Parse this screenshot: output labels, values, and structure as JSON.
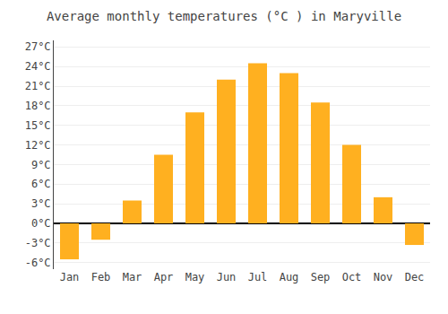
{
  "chart_data": {
    "type": "bar",
    "title": "Average monthly temperatures (°C ) in Maryville",
    "categories": [
      "Jan",
      "Feb",
      "Mar",
      "Apr",
      "May",
      "Jun",
      "Jul",
      "Aug",
      "Sep",
      "Oct",
      "Nov",
      "Dec"
    ],
    "values": [
      -5.5,
      -2.5,
      3.5,
      10.5,
      17.0,
      22.0,
      24.5,
      23.0,
      18.5,
      12.0,
      4.0,
      -3.3
    ],
    "color": "#FFB020",
    "ylim": [
      -7,
      28
    ],
    "yticks": [
      {
        "value": -6,
        "label": "-6°C"
      },
      {
        "value": -3,
        "label": "-3°C"
      },
      {
        "value": 0,
        "label": "0°C"
      },
      {
        "value": 3,
        "label": "3°C"
      },
      {
        "value": 6,
        "label": "6°C"
      },
      {
        "value": 9,
        "label": "9°C"
      },
      {
        "value": 12,
        "label": "12°C"
      },
      {
        "value": 15,
        "label": "15°C"
      },
      {
        "value": 18,
        "label": "18°C"
      },
      {
        "value": 21,
        "label": "21°C"
      },
      {
        "value": 24,
        "label": "24°C"
      },
      {
        "value": 27,
        "label": "27°C"
      }
    ],
    "grid": true
  }
}
